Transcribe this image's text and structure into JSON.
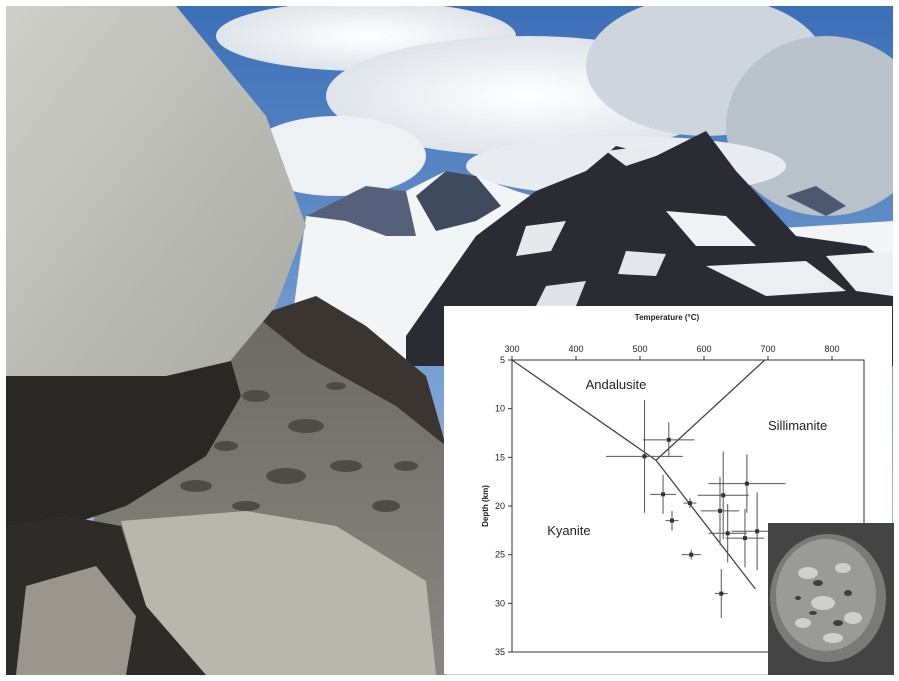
{
  "chart_data": {
    "type": "scatter",
    "title": "",
    "xlabel": "Temperature (°C)",
    "ylabel": "Depth (km)",
    "x_axis_position": "top",
    "y_axis_inverted": true,
    "xlim": [
      300,
      850
    ],
    "ylim": [
      5,
      35
    ],
    "x_ticks": [
      300,
      400,
      500,
      600,
      700,
      800
    ],
    "y_ticks": [
      5,
      10,
      15,
      20,
      25,
      30,
      35
    ],
    "grid": false,
    "region_labels": [
      {
        "text": "Andalusite",
        "x": 415,
        "y": 8.0
      },
      {
        "text": "Sillimanite",
        "x": 700,
        "y": 12.2
      },
      {
        "text": "Kyanite",
        "x": 355,
        "y": 23.0
      }
    ],
    "phase_boundaries": [
      {
        "name": "Andalusite-Kyanite",
        "points": [
          [
            300,
            5
          ],
          [
            525,
            15.3
          ]
        ]
      },
      {
        "name": "Andalusite-Sillimanite",
        "points": [
          [
            525,
            15.3
          ],
          [
            695,
            5
          ]
        ]
      },
      {
        "name": "Kyanite-Sillimanite",
        "points": [
          [
            525,
            15.3
          ],
          [
            680,
            28.5
          ]
        ]
      }
    ],
    "series": [
      {
        "points": [
          {
            "x": 507,
            "y": 14.9,
            "xerr": 60,
            "yerr": 5.8
          },
          {
            "x": 545,
            "y": 13.2,
            "xerr": 40,
            "yerr": 1.8
          },
          {
            "x": 536,
            "y": 18.8,
            "xerr": 20,
            "yerr": 2.0
          },
          {
            "x": 550,
            "y": 21.5,
            "xerr": 10,
            "yerr": 1.0
          },
          {
            "x": 578,
            "y": 19.7,
            "xerr": 10,
            "yerr": 0.5
          },
          {
            "x": 580,
            "y": 25.0,
            "xerr": 15,
            "yerr": 0.5
          },
          {
            "x": 625,
            "y": 20.5,
            "xerr": 30,
            "yerr": 3.5
          },
          {
            "x": 630,
            "y": 18.9,
            "xerr": 40,
            "yerr": 4.5
          },
          {
            "x": 637,
            "y": 22.8,
            "xerr": 30,
            "yerr": 3.0
          },
          {
            "x": 627,
            "y": 29.0,
            "xerr": 10,
            "yerr": 2.5
          },
          {
            "x": 667,
            "y": 17.7,
            "xerr": 60,
            "yerr": 3.0
          },
          {
            "x": 664,
            "y": 23.3,
            "xerr": 30,
            "yerr": 3.0
          },
          {
            "x": 683,
            "y": 22.6,
            "xerr": 40,
            "yerr": 4.0
          }
        ]
      }
    ]
  }
}
